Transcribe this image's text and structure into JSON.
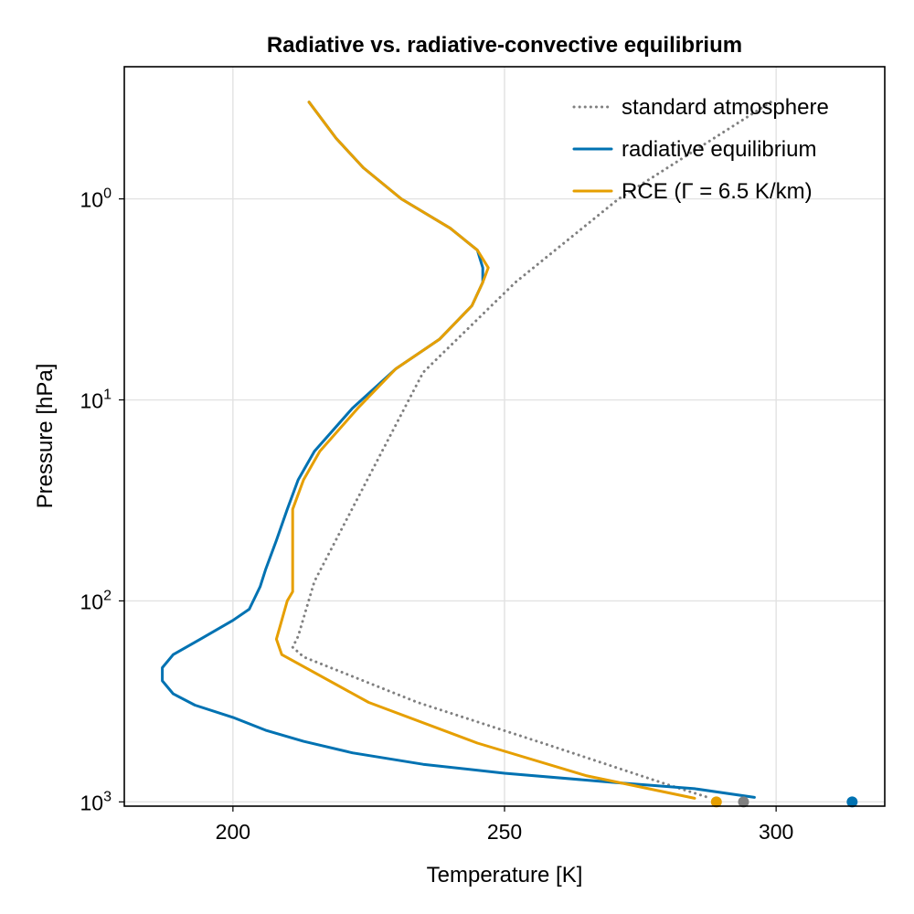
{
  "chart_data": {
    "type": "line",
    "title": "Radiative vs. radiative-convective equilibrium",
    "xlabel": "Temperature [K]",
    "ylabel": "Pressure [hPa]",
    "xlim": [
      180,
      320
    ],
    "ylim": [
      1050,
      0.22
    ],
    "yscale": "log",
    "y_reversed": true,
    "grid": true,
    "legend_position": "top-right",
    "x_ticks": [
      200,
      250,
      300
    ],
    "x_tick_labels": [
      "200",
      "250",
      "300"
    ],
    "y_ticks": [
      1,
      10,
      100,
      1000
    ],
    "y_tick_labels": [
      {
        "base": "10",
        "exp": "0"
      },
      {
        "base": "10",
        "exp": "1"
      },
      {
        "base": "10",
        "exp": "2"
      },
      {
        "base": "10",
        "exp": "3"
      }
    ],
    "series": [
      {
        "name": "standard atmosphere",
        "color": "#808080",
        "style": "dotted",
        "x": [
          299,
          271,
          252,
          235,
          215,
          212,
          211,
          213,
          234,
          258,
          280,
          288
        ],
        "y": [
          0.33,
          1,
          2.6,
          7.3,
          80,
          150,
          170,
          190,
          320,
          520,
          820,
          960
        ]
      },
      {
        "name": "radiative equilibrium",
        "color": "#0072b2",
        "style": "solid",
        "x": [
          214,
          219,
          224,
          231,
          240,
          245,
          246,
          246,
          244,
          238,
          230,
          222,
          215,
          212,
          210,
          208,
          206,
          205,
          203,
          200,
          194,
          189,
          187,
          187,
          189,
          193,
          200,
          206,
          213,
          222,
          235,
          250,
          270,
          285,
          296
        ],
        "y": [
          0.33,
          0.5,
          0.7,
          1.0,
          1.4,
          1.8,
          2.2,
          2.6,
          3.4,
          5.0,
          7.0,
          11,
          18,
          25,
          35,
          50,
          70,
          85,
          110,
          125,
          155,
          185,
          215,
          250,
          290,
          330,
          380,
          440,
          500,
          570,
          650,
          720,
          800,
          860,
          950
        ]
      },
      {
        "name": "RCE (Γ = 6.5 K/km)",
        "color": "#e69f00",
        "style": "solid",
        "x": [
          214,
          219,
          224,
          231,
          240,
          245,
          247,
          246,
          244,
          238,
          230,
          223,
          216,
          213,
          211,
          211,
          211,
          211,
          210,
          208,
          209,
          225,
          245,
          265,
          285
        ],
        "y": [
          0.33,
          0.5,
          0.7,
          1.0,
          1.4,
          1.8,
          2.2,
          2.6,
          3.4,
          5.0,
          7.0,
          11,
          18,
          25,
          35,
          50,
          70,
          90,
          100,
          155,
          185,
          320,
          510,
          740,
          960
        ]
      }
    ],
    "surface_markers": [
      {
        "x": 314,
        "y": 1000,
        "color": "#0072b2"
      },
      {
        "x": 294,
        "y": 1000,
        "color": "#808080"
      },
      {
        "x": 289,
        "y": 1000,
        "color": "#e69f00"
      }
    ]
  }
}
